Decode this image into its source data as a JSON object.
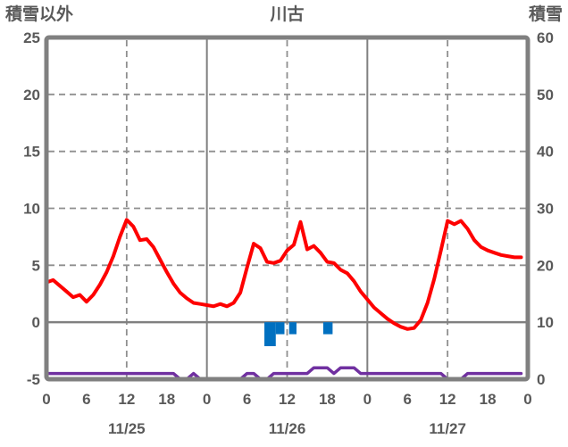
{
  "header": {
    "left_axis_title": "積雪以外",
    "station_name": "川古",
    "right_axis_title": "積雪"
  },
  "chart_data": {
    "type": "line",
    "title": "川古",
    "left_axis": {
      "title": "積雪以外",
      "min": -5,
      "max": 25,
      "tick_labels": [
        25,
        20,
        15,
        10,
        5,
        0,
        -5
      ]
    },
    "right_axis": {
      "title": "積雪",
      "min": 0,
      "max": 60,
      "tick_labels": [
        60,
        50,
        40,
        30,
        20,
        10,
        0
      ]
    },
    "x_axis": {
      "hours_span": 72,
      "tick_hours": [
        0,
        6,
        12,
        18,
        24,
        30,
        36,
        42,
        48,
        54,
        60,
        66,
        72
      ],
      "tick_labels": [
        "0",
        "6",
        "12",
        "18",
        "0",
        "6",
        "12",
        "18",
        "0",
        "6",
        "12",
        "18",
        "0"
      ],
      "date_labels": [
        {
          "label": "11/25",
          "hour": 12
        },
        {
          "label": "11/26",
          "hour": 36
        },
        {
          "label": "11/27",
          "hour": 60
        }
      ]
    },
    "grid": {
      "h_dashed_left_values": [
        20,
        15,
        10,
        5
      ],
      "zero_line_left_value": 0,
      "v_solid_hours": [
        24,
        48
      ],
      "v_dashed_hours": [
        12,
        36,
        60
      ]
    },
    "series": [
      {
        "name": "red-line",
        "axis": "left",
        "type": "line",
        "color": "#FE0000",
        "stroke_width": 4,
        "x_start_hour": 0,
        "x_step_hours": 1,
        "values": [
          3.5,
          3.7,
          3.2,
          2.7,
          2.2,
          2.4,
          1.8,
          2.4,
          3.3,
          4.4,
          5.8,
          7.5,
          9.0,
          8.4,
          7.2,
          7.3,
          6.6,
          5.5,
          4.4,
          3.4,
          2.6,
          2.1,
          1.7,
          1.6,
          1.5,
          1.4,
          1.6,
          1.4,
          1.7,
          2.6,
          4.8,
          6.9,
          6.5,
          5.3,
          5.2,
          5.4,
          6.3,
          6.8,
          8.8,
          6.4,
          6.7,
          6.1,
          5.3,
          5.2,
          4.6,
          4.3,
          3.6,
          2.7,
          2.0,
          1.3,
          0.8,
          0.3,
          -0.1,
          -0.4,
          -0.6,
          -0.5,
          0.2,
          1.7,
          3.8,
          6.3,
          8.9,
          8.6,
          8.9,
          8.2,
          7.2,
          6.6,
          6.3,
          6.1,
          5.9,
          5.8,
          5.7,
          5.7
        ]
      },
      {
        "name": "purple-line",
        "axis": "right",
        "type": "line",
        "color": "#7030A0",
        "stroke_width": 3.5,
        "x_start_hour": 0,
        "x_step_hours": 1,
        "values": [
          1,
          1,
          1,
          1,
          1,
          1,
          1,
          1,
          1,
          1,
          1,
          1,
          1,
          1,
          1,
          1,
          1,
          1,
          1,
          1,
          0,
          0,
          1,
          0,
          0,
          0,
          0,
          0,
          0,
          0,
          1,
          1,
          0,
          0,
          1,
          1,
          1,
          1,
          1,
          1,
          2,
          2,
          2,
          1,
          2,
          2,
          2,
          1,
          1,
          1,
          1,
          1,
          1,
          1,
          1,
          1,
          1,
          1,
          1,
          1,
          0,
          0,
          0,
          1,
          1,
          1,
          1,
          1,
          1,
          1,
          1,
          1
        ]
      },
      {
        "name": "blue-bars",
        "axis": "left",
        "type": "bar",
        "color": "#0070C0",
        "baseline_value": 0,
        "bars": [
          {
            "start_hour": 32.6,
            "end_hour": 34.3,
            "value": -2.1
          },
          {
            "start_hour": 34.3,
            "end_hour": 35.6,
            "value": -1.05
          },
          {
            "start_hour": 36.3,
            "end_hour": 37.4,
            "value": -1.05
          },
          {
            "start_hour": 41.4,
            "end_hour": 42.8,
            "value": -1.05
          }
        ]
      }
    ],
    "colors": {
      "axis": "#808080",
      "grid": "#8F8F8F",
      "text": "#595959"
    }
  }
}
